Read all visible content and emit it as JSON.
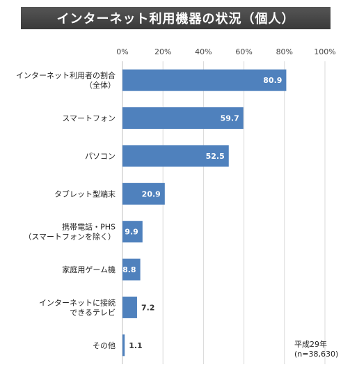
{
  "chart_data": {
    "type": "bar",
    "orientation": "horizontal",
    "title": "インターネット利用機器の状況（個人）",
    "categories": [
      [
        "インターネット利用者の割合",
        "（全体）"
      ],
      [
        "スマートフォン"
      ],
      [
        "パソコン"
      ],
      [
        "タブレット型端末"
      ],
      [
        "携帯電話・PHS",
        "（スマートフォンを除く）"
      ],
      [
        "家庭用ゲーム機"
      ],
      [
        "インターネットに接続",
        "できるテレビ"
      ],
      [
        "その他"
      ]
    ],
    "values": [
      80.9,
      59.7,
      52.5,
      20.9,
      9.9,
      8.8,
      7.2,
      1.1
    ],
    "data_labels": [
      "80.9",
      "59.7",
      "52.5",
      "20.9",
      "9.9",
      "8.8",
      "7.2",
      "1.1"
    ],
    "x_ticks": [
      "0%",
      "20%",
      "40%",
      "60%",
      "80%",
      "100%"
    ],
    "xlim": [
      0,
      100
    ],
    "grid": true,
    "bar_color": "#4f81bd",
    "note": [
      "平成29年",
      "(n=38,630)"
    ]
  }
}
